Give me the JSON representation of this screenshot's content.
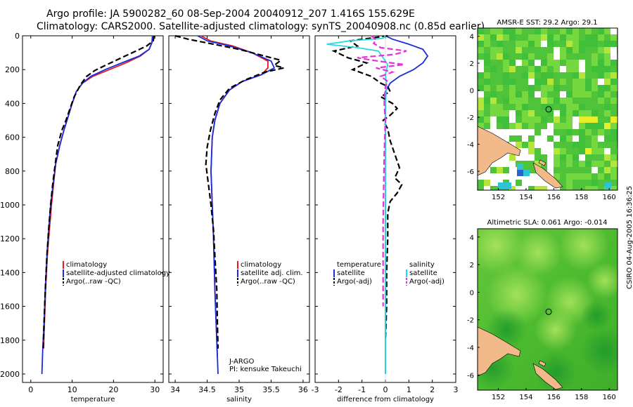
{
  "header": {
    "line1": "Argo profile: JA 5900282_60 08-Sep-2004 20040912_207 1.416S 155.629E",
    "line2": "Climatology: CARS2000. Satellite-adjusted climatology: synTS_20040908.nc (0.85d earlier)"
  },
  "credit": "CSIRO 04-Aug-2005 16:36:25",
  "colors": {
    "climatology": "#e31a1c",
    "satellite": "#1a2cde",
    "argo": "#000000",
    "salinity_sat": "#28d9e6",
    "salinity_argo": "#e830d8",
    "land": "#f2b98a"
  },
  "chart_data": [
    {
      "type": "line",
      "panel": "temperature",
      "xlabel": "temperature",
      "ylabel": "",
      "xlim": [
        -2,
        32
      ],
      "ylim": [
        2050,
        0
      ],
      "y_reversed": true,
      "xticks": [
        0,
        10,
        20,
        30
      ],
      "yticks": [
        0,
        200,
        400,
        600,
        800,
        1000,
        1200,
        1400,
        1600,
        1800,
        2000
      ],
      "legend": [
        "climatology",
        "satellite-adjusted climatology",
        "Argo(..raw -QC)"
      ],
      "series": [
        {
          "name": "climatology",
          "dash": "solid",
          "color": "#e31a1c",
          "points": [
            [
              29.5,
              0
            ],
            [
              29.3,
              40
            ],
            [
              28.6,
              80
            ],
            [
              26.5,
              120
            ],
            [
              23,
              160
            ],
            [
              19,
              200
            ],
            [
              15,
              240
            ],
            [
              12.5,
              280
            ],
            [
              11,
              330
            ],
            [
              10,
              400
            ],
            [
              9,
              480
            ],
            [
              8,
              560
            ],
            [
              7,
              650
            ],
            [
              6,
              760
            ],
            [
              5.5,
              880
            ],
            [
              5,
              1000
            ],
            [
              4.5,
              1150
            ],
            [
              4,
              1300
            ],
            [
              3.6,
              1500
            ],
            [
              3.3,
              1700
            ],
            [
              3.1,
              1850
            ]
          ]
        },
        {
          "name": "satellite-adjusted climatology",
          "dash": "solid",
          "color": "#1a2cde",
          "points": [
            [
              29.4,
              0
            ],
            [
              29.3,
              40
            ],
            [
              28.6,
              80
            ],
            [
              26.2,
              120
            ],
            [
              22,
              160
            ],
            [
              18,
              200
            ],
            [
              14.5,
              240
            ],
            [
              12.5,
              280
            ],
            [
              11,
              330
            ],
            [
              10,
              400
            ],
            [
              9,
              480
            ],
            [
              8,
              560
            ],
            [
              7,
              650
            ],
            [
              6,
              760
            ],
            [
              5.4,
              880
            ],
            [
              4.8,
              1000
            ],
            [
              4.3,
              1150
            ],
            [
              3.9,
              1300
            ],
            [
              3.5,
              1500
            ],
            [
              3.2,
              1700
            ],
            [
              2.9,
              1850
            ],
            [
              2.7,
              2000
            ]
          ]
        },
        {
          "name": "Argo(..raw -QC)",
          "dash": "dashed",
          "color": "#000000",
          "points": [
            [
              29.8,
              0
            ],
            [
              29.6,
              30
            ],
            [
              28,
              60
            ],
            [
              25,
              95
            ],
            [
              21.5,
              135
            ],
            [
              18,
              175
            ],
            [
              15.5,
              205
            ],
            [
              13.5,
              240
            ],
            [
              12,
              290
            ],
            [
              10.5,
              360
            ],
            [
              9.5,
              430
            ],
            [
              8.5,
              500
            ],
            [
              7.5,
              560
            ],
            [
              6.5,
              650
            ],
            [
              5.9,
              760
            ],
            [
              5.3,
              880
            ],
            [
              4.8,
              1000
            ],
            [
              4.3,
              1150
            ],
            [
              3.9,
              1300
            ],
            [
              3.5,
              1500
            ],
            [
              3.2,
              1700
            ],
            [
              3,
              1850
            ]
          ]
        }
      ]
    },
    {
      "type": "line",
      "panel": "salinity",
      "xlabel": "salinity",
      "ylabel": "",
      "xlim": [
        33.9,
        36.1
      ],
      "ylim": [
        2050,
        0
      ],
      "y_reversed": true,
      "xticks": [
        34,
        34.5,
        35,
        35.5,
        36
      ],
      "legend": [
        "climatology",
        "satellite adj. clim.",
        "Argo(..raw -QC)"
      ],
      "annotations": [
        "J-ARGO",
        "PI: kensuke Takeuchi"
      ],
      "series": [
        {
          "name": "climatology",
          "dash": "solid",
          "color": "#e31a1c",
          "points": [
            [
              34.4,
              0
            ],
            [
              34.55,
              30
            ],
            [
              34.9,
              60
            ],
            [
              35.2,
              100
            ],
            [
              35.45,
              150
            ],
            [
              35.45,
              190
            ],
            [
              35.35,
              230
            ],
            [
              35.05,
              270
            ],
            [
              34.85,
              320
            ],
            [
              34.7,
              400
            ],
            [
              34.62,
              500
            ],
            [
              34.58,
              600
            ],
            [
              34.56,
              800
            ],
            [
              34.58,
              1000
            ],
            [
              34.6,
              1200
            ],
            [
              34.62,
              1500
            ],
            [
              34.65,
              1800
            ],
            [
              34.66,
              1900
            ]
          ]
        },
        {
          "name": "satellite adj. clim.",
          "dash": "solid",
          "color": "#1a2cde",
          "points": [
            [
              34.35,
              0
            ],
            [
              34.5,
              30
            ],
            [
              34.85,
              60
            ],
            [
              35.2,
              100
            ],
            [
              35.5,
              150
            ],
            [
              35.55,
              190
            ],
            [
              35.35,
              230
            ],
            [
              35.05,
              270
            ],
            [
              34.85,
              320
            ],
            [
              34.7,
              400
            ],
            [
              34.62,
              500
            ],
            [
              34.58,
              600
            ],
            [
              34.56,
              800
            ],
            [
              34.58,
              1000
            ],
            [
              34.6,
              1200
            ],
            [
              34.62,
              1500
            ],
            [
              34.65,
              1800
            ],
            [
              34.67,
              2000
            ]
          ]
        },
        {
          "name": "Argo(..raw -QC)",
          "dash": "dashed",
          "color": "#000000",
          "points": [
            [
              34.0,
              0
            ],
            [
              34.2,
              20
            ],
            [
              34.6,
              50
            ],
            [
              35.0,
              80
            ],
            [
              35.35,
              115
            ],
            [
              35.65,
              145
            ],
            [
              35.55,
              175
            ],
            [
              35.7,
              190
            ],
            [
              35.4,
              215
            ],
            [
              35.1,
              260
            ],
            [
              34.85,
              310
            ],
            [
              34.7,
              380
            ],
            [
              34.62,
              460
            ],
            [
              34.55,
              560
            ],
            [
              34.5,
              660
            ],
            [
              34.48,
              760
            ],
            [
              34.52,
              880
            ],
            [
              34.56,
              1000
            ],
            [
              34.6,
              1150
            ],
            [
              34.62,
              1300
            ],
            [
              34.65,
              1500
            ],
            [
              34.66,
              1700
            ],
            [
              34.67,
              1850
            ]
          ]
        }
      ]
    },
    {
      "type": "line",
      "panel": "difference",
      "xlabel": "difference from climatology",
      "ylabel": "",
      "xlim": [
        -3,
        3
      ],
      "ylim": [
        2050,
        0
      ],
      "y_reversed": true,
      "xticks": [
        -3,
        -2,
        -1,
        0,
        1,
        2,
        3
      ],
      "legend": [
        "temperature",
        "satellite",
        "Argo(-adj)",
        "salinity",
        "satellite",
        "Argo(-adj)"
      ],
      "series": [
        {
          "name": "temperature satellite",
          "dash": "solid",
          "color": "#1a2cde",
          "points": [
            [
              0,
              0
            ],
            [
              0.3,
              20
            ],
            [
              1,
              50
            ],
            [
              1.6,
              80
            ],
            [
              1.8,
              120
            ],
            [
              1.6,
              160
            ],
            [
              1.2,
              200
            ],
            [
              0.6,
              240
            ],
            [
              0.2,
              280
            ],
            [
              0,
              330
            ],
            [
              0,
              2000
            ]
          ]
        },
        {
          "name": "temperature Argo(-adj)",
          "dash": "dashed",
          "color": "#000000",
          "points": [
            [
              0.1,
              0
            ],
            [
              -1.5,
              30
            ],
            [
              -1.2,
              60
            ],
            [
              -2.2,
              90
            ],
            [
              -1.6,
              130
            ],
            [
              -0.8,
              160
            ],
            [
              -1.4,
              200
            ],
            [
              -0.6,
              240
            ],
            [
              -0.2,
              280
            ],
            [
              0.1,
              300
            ],
            [
              0.2,
              330
            ],
            [
              -0.2,
              360
            ],
            [
              0.3,
              400
            ],
            [
              0.5,
              430
            ],
            [
              0.2,
              470
            ],
            [
              -0.1,
              500
            ],
            [
              0.1,
              550
            ],
            [
              0.2,
              620
            ],
            [
              0.4,
              700
            ],
            [
              0.6,
              780
            ],
            [
              0.4,
              840
            ],
            [
              0.7,
              880
            ],
            [
              0.5,
              930
            ],
            [
              0.2,
              980
            ],
            [
              0.1,
              1050
            ],
            [
              0.1,
              1200
            ],
            [
              0.05,
              1400
            ],
            [
              0.05,
              1600
            ],
            [
              0,
              1800
            ]
          ]
        },
        {
          "name": "salinity satellite",
          "dash": "solid",
          "color": "#28d9e6",
          "points": [
            [
              0,
              0
            ],
            [
              -0.1,
              15
            ],
            [
              -1.5,
              30
            ],
            [
              -2.5,
              50
            ],
            [
              -1.2,
              70
            ],
            [
              -0.3,
              90
            ],
            [
              -0.1,
              130
            ],
            [
              0.1,
              170
            ],
            [
              0,
              230
            ],
            [
              0.05,
              300
            ],
            [
              0,
              400
            ],
            [
              0,
              2000
            ]
          ]
        },
        {
          "name": "salinity Argo(-adj)",
          "dash": "dashed",
          "color": "#e830d8",
          "points": [
            [
              -0.6,
              0
            ],
            [
              -0.4,
              25
            ],
            [
              -0.5,
              45
            ],
            [
              -0.2,
              70
            ],
            [
              0.9,
              90
            ],
            [
              0.4,
              110
            ],
            [
              -1.2,
              130
            ],
            [
              -0.3,
              150
            ],
            [
              0.8,
              170
            ],
            [
              -0.4,
              190
            ],
            [
              0.3,
              215
            ],
            [
              -0.2,
              240
            ],
            [
              0.1,
              270
            ],
            [
              0,
              300
            ],
            [
              -0.05,
              400
            ],
            [
              0,
              500
            ],
            [
              -0.05,
              700
            ],
            [
              -0.1,
              1100
            ],
            [
              -0.1,
              1300
            ],
            [
              -0.1,
              1600
            ]
          ]
        }
      ]
    },
    {
      "type": "heatmap",
      "panel": "sst_map",
      "title": "AMSR-E SST: 29.2 Argo: 29.1",
      "xlim": [
        150.5,
        160.6
      ],
      "ylim": [
        -7.4,
        4.6
      ],
      "xticks": [
        152,
        154,
        156,
        158,
        160
      ],
      "yticks": [
        -6,
        -4,
        -2,
        0,
        2,
        4
      ],
      "argo_position": {
        "lon": 155.629,
        "lat": -1.416
      }
    },
    {
      "type": "heatmap",
      "panel": "sla_map",
      "title": "Altimetric SLA: 0.061 Argo: -0.014",
      "xlim": [
        150.5,
        160.6
      ],
      "ylim": [
        -7.1,
        4.6
      ],
      "xticks": [
        152,
        154,
        156,
        158,
        160
      ],
      "yticks": [
        -6,
        -4,
        -2,
        0,
        2,
        4
      ],
      "argo_position": {
        "lon": 155.629,
        "lat": -1.416
      }
    }
  ]
}
